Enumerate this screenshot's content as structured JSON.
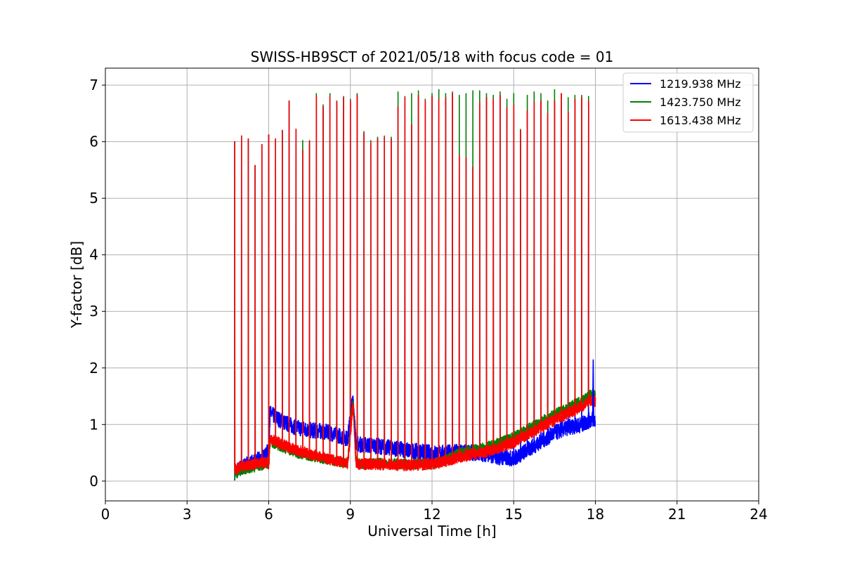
{
  "chart_data": {
    "type": "line",
    "title": "SWISS-HB9SCT of 2021/05/18 with focus code = 01",
    "xlabel": "Universal Time [h]",
    "ylabel": "Y-factor [dB]",
    "xlim": [
      0,
      24
    ],
    "ylim": [
      -0.35,
      7.3
    ],
    "xticks": [
      0,
      3,
      6,
      9,
      12,
      15,
      18,
      21,
      24
    ],
    "yticks": [
      0,
      1,
      2,
      3,
      4,
      5,
      6,
      7
    ],
    "grid": true,
    "legend_position": "top-right",
    "series": [
      {
        "name": "1219.938 MHz",
        "color": "#0000ff",
        "x": [
          4.75,
          5.0,
          5.5,
          5.9,
          6.0,
          6.05,
          6.5,
          7.0,
          7.5,
          8.0,
          8.5,
          8.9,
          9.1,
          9.2,
          9.3,
          10.0,
          11.0,
          12.0,
          12.5,
          13.0,
          13.5,
          14.0,
          14.5,
          15.0,
          15.5,
          16.0,
          16.5,
          17.0,
          17.5,
          17.9,
          18.0
        ],
        "y": [
          0.15,
          0.25,
          0.35,
          0.45,
          0.6,
          1.2,
          1.05,
          0.95,
          0.9,
          0.88,
          0.82,
          0.75,
          1.5,
          0.7,
          0.65,
          0.62,
          0.55,
          0.5,
          0.5,
          0.52,
          0.5,
          0.48,
          0.42,
          0.4,
          0.55,
          0.7,
          0.85,
          0.95,
          1.0,
          1.1,
          1.05
        ]
      },
      {
        "name": "1423.750 MHz",
        "color": "#008000",
        "x": [
          4.75,
          5.0,
          5.5,
          5.9,
          6.0,
          6.05,
          6.5,
          7.0,
          7.5,
          8.0,
          8.5,
          8.9,
          9.1,
          9.2,
          9.3,
          10.0,
          11.0,
          12.0,
          12.5,
          13.0,
          13.5,
          14.0,
          14.5,
          15.0,
          15.5,
          16.0,
          16.5,
          17.0,
          17.5,
          17.9,
          18.0
        ],
        "y": [
          0.12,
          0.2,
          0.25,
          0.3,
          0.3,
          0.7,
          0.6,
          0.5,
          0.45,
          0.4,
          0.35,
          0.32,
          1.45,
          0.35,
          0.3,
          0.32,
          0.3,
          0.3,
          0.38,
          0.5,
          0.55,
          0.6,
          0.68,
          0.78,
          0.92,
          1.05,
          1.18,
          1.3,
          1.42,
          1.55,
          1.5
        ]
      },
      {
        "name": "1613.438 MHz",
        "color": "#ff0000",
        "x": [
          4.75,
          5.0,
          5.5,
          5.9,
          6.0,
          6.05,
          6.5,
          7.0,
          7.5,
          8.0,
          8.5,
          8.9,
          9.1,
          9.2,
          9.3,
          10.0,
          11.0,
          12.0,
          12.5,
          13.0,
          13.5,
          14.0,
          14.5,
          15.0,
          15.5,
          16.0,
          16.5,
          17.0,
          17.5,
          17.9,
          18.0
        ],
        "y": [
          0.2,
          0.25,
          0.3,
          0.32,
          0.32,
          0.75,
          0.65,
          0.55,
          0.48,
          0.42,
          0.35,
          0.32,
          1.35,
          0.35,
          0.3,
          0.3,
          0.28,
          0.3,
          0.35,
          0.42,
          0.48,
          0.52,
          0.6,
          0.68,
          0.82,
          0.95,
          1.08,
          1.2,
          1.32,
          1.45,
          1.4
        ]
      }
    ],
    "spikes": {
      "x": [
        4.75,
        5.0,
        5.25,
        5.5,
        5.75,
        6.0,
        6.25,
        6.5,
        6.75,
        7.0,
        7.25,
        7.5,
        7.75,
        8.0,
        8.25,
        8.5,
        8.75,
        9.0,
        9.25,
        9.5,
        9.75,
        10.0,
        10.25,
        10.5,
        10.75,
        11.0,
        11.25,
        11.5,
        11.75,
        12.0,
        12.25,
        12.5,
        12.75,
        13.0,
        13.25,
        13.5,
        13.75,
        14.0,
        14.25,
        14.5,
        14.75,
        15.0,
        15.25,
        15.5,
        15.75,
        16.0,
        16.25,
        16.5,
        16.75,
        17.0,
        17.25,
        17.5,
        17.75
      ],
      "height_red": [
        6.0,
        6.1,
        6.05,
        5.58,
        5.95,
        6.12,
        6.05,
        6.2,
        6.72,
        6.22,
        5.85,
        6.0,
        6.8,
        6.62,
        6.8,
        6.7,
        6.78,
        6.72,
        6.82,
        6.15,
        5.98,
        6.05,
        6.08,
        6.05,
        6.62,
        6.78,
        6.3,
        6.82,
        6.72,
        6.8,
        6.75,
        6.78,
        6.85,
        5.75,
        5.72,
        5.55,
        6.7,
        6.78,
        6.75,
        6.82,
        6.6,
        6.65,
        6.2,
        6.55,
        6.7,
        6.72,
        6.5,
        6.72,
        6.85,
        6.52,
        6.75,
        6.78,
        6.72
      ],
      "height_green": [
        6.0,
        6.1,
        6.05,
        5.58,
        5.95,
        6.12,
        6.05,
        6.2,
        6.72,
        6.22,
        6.02,
        6.02,
        6.85,
        6.65,
        6.85,
        6.72,
        6.8,
        6.75,
        6.85,
        6.18,
        6.02,
        6.08,
        6.1,
        6.08,
        6.88,
        6.8,
        6.85,
        6.9,
        6.75,
        6.85,
        6.92,
        6.85,
        6.88,
        6.82,
        6.85,
        6.9,
        6.9,
        6.85,
        6.82,
        6.88,
        6.75,
        6.85,
        6.22,
        6.82,
        6.88,
        6.85,
        6.72,
        6.92,
        6.85,
        6.78,
        6.82,
        6.82,
        6.8
      ]
    }
  }
}
